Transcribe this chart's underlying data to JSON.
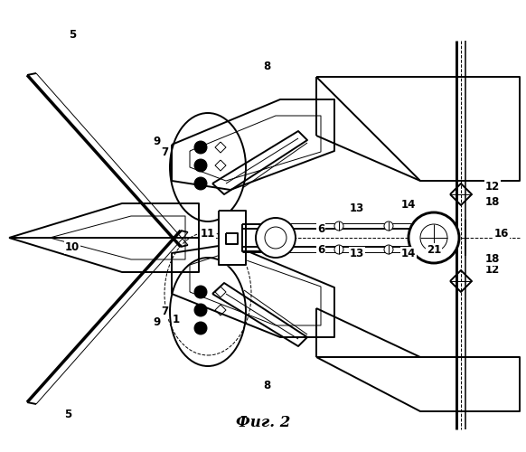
{
  "title": "Фиг. 2",
  "bg_color": "#ffffff",
  "line_color": "#000000",
  "lw": 1.4,
  "tlw": 0.7
}
